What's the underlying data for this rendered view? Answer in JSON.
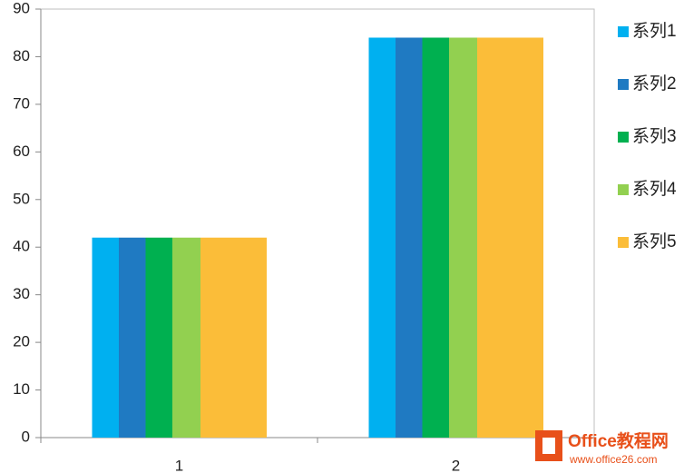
{
  "chart_data": {
    "type": "bar",
    "categories": [
      "1",
      "2"
    ],
    "series": [
      {
        "name": "系列1",
        "color": "#00b0f0",
        "values": [
          42,
          84
        ]
      },
      {
        "name": "系列2",
        "color": "#1f7ac2",
        "values": [
          42,
          84
        ]
      },
      {
        "name": "系列3",
        "color": "#00b050",
        "values": [
          42,
          84
        ]
      },
      {
        "name": "系列4",
        "color": "#92d050",
        "values": [
          42,
          84
        ]
      },
      {
        "name": "系列5",
        "color": "#fbbd39",
        "values": [
          42,
          84
        ]
      }
    ],
    "ylim": [
      0,
      90
    ],
    "yticks": [
      0,
      10,
      20,
      30,
      40,
      50,
      60,
      70,
      80,
      90
    ],
    "legend": "right"
  },
  "watermark": {
    "title": "Office教程网",
    "url": "www.office26.com"
  }
}
